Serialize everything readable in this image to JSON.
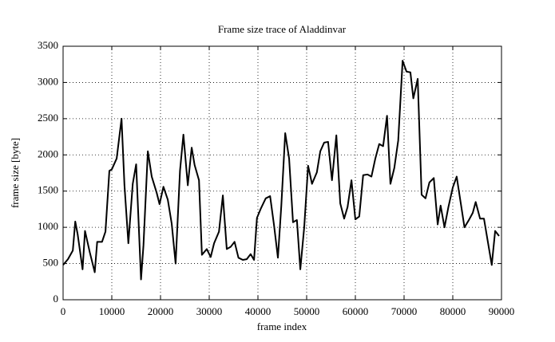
{
  "chart_data": {
    "type": "line",
    "title": "Frame size trace of Aladdinvar",
    "xlabel": "frame index",
    "ylabel": "frame size [byte]",
    "x": [
      0,
      1000,
      2000,
      2500,
      3000,
      4000,
      4500,
      5500,
      6500,
      7000,
      8000,
      8700,
      9500,
      10000,
      11000,
      12000,
      12600,
      13400,
      14300,
      15000,
      16000,
      16500,
      17400,
      18200,
      19200,
      19800,
      20600,
      21500,
      22300,
      23100,
      24000,
      24700,
      25600,
      26400,
      27000,
      27900,
      28500,
      29500,
      30300,
      31000,
      32000,
      32800,
      33600,
      34400,
      35200,
      36000,
      36900,
      37700,
      38500,
      39200,
      39800,
      40600,
      41600,
      42500,
      43300,
      44100,
      44800,
      45600,
      46400,
      47200,
      48000,
      48700,
      49500,
      50300,
      51100,
      52100,
      52800,
      53600,
      54400,
      55200,
      56100,
      56900,
      57700,
      58400,
      59200,
      60000,
      60800,
      61600,
      62500,
      63300,
      64100,
      64900,
      65700,
      66500,
      67200,
      68000,
      68800,
      69700,
      70500,
      71300,
      71900,
      72800,
      73600,
      74400,
      75200,
      76100,
      76900,
      77500,
      78300,
      79100,
      80000,
      80800,
      81600,
      82400,
      83300,
      84100,
      84700,
      85600,
      86400,
      87200,
      88000,
      88700,
      89500
    ],
    "series": [
      {
        "name": "Aladdinvar",
        "color": "#000000",
        "values": [
          480,
          560,
          680,
          1080,
          900,
          420,
          950,
          650,
          380,
          800,
          800,
          940,
          1780,
          1800,
          1950,
          2500,
          1580,
          780,
          1600,
          1870,
          280,
          750,
          2050,
          1700,
          1480,
          1320,
          1560,
          1380,
          1050,
          500,
          1780,
          2280,
          1580,
          2100,
          1860,
          1650,
          620,
          700,
          590,
          780,
          940,
          1440,
          700,
          730,
          800,
          580,
          550,
          560,
          630,
          550,
          1130,
          1260,
          1400,
          1430,
          1030,
          580,
          1300,
          2300,
          1950,
          1070,
          1100,
          420,
          1000,
          1850,
          1600,
          1760,
          2050,
          2170,
          2180,
          1650,
          2270,
          1330,
          1120,
          1280,
          1650,
          1110,
          1150,
          1720,
          1730,
          1700,
          1950,
          2150,
          2120,
          2540,
          1600,
          1820,
          2200,
          3300,
          3150,
          3140,
          2780,
          3050,
          1450,
          1400,
          1620,
          1680,
          1040,
          1300,
          1000,
          1280,
          1550,
          1700,
          1350,
          1000,
          1100,
          1200,
          1350,
          1120,
          1120,
          800,
          480,
          950,
          880
        ]
      }
    ],
    "xlim": [
      0,
      90000
    ],
    "xticks": [
      0,
      10000,
      20000,
      30000,
      40000,
      50000,
      60000,
      70000,
      80000,
      90000
    ],
    "ylim": [
      0,
      3500
    ],
    "yticks": [
      0,
      500,
      1000,
      1500,
      2000,
      2500,
      3000,
      3500
    ],
    "grid": true
  }
}
